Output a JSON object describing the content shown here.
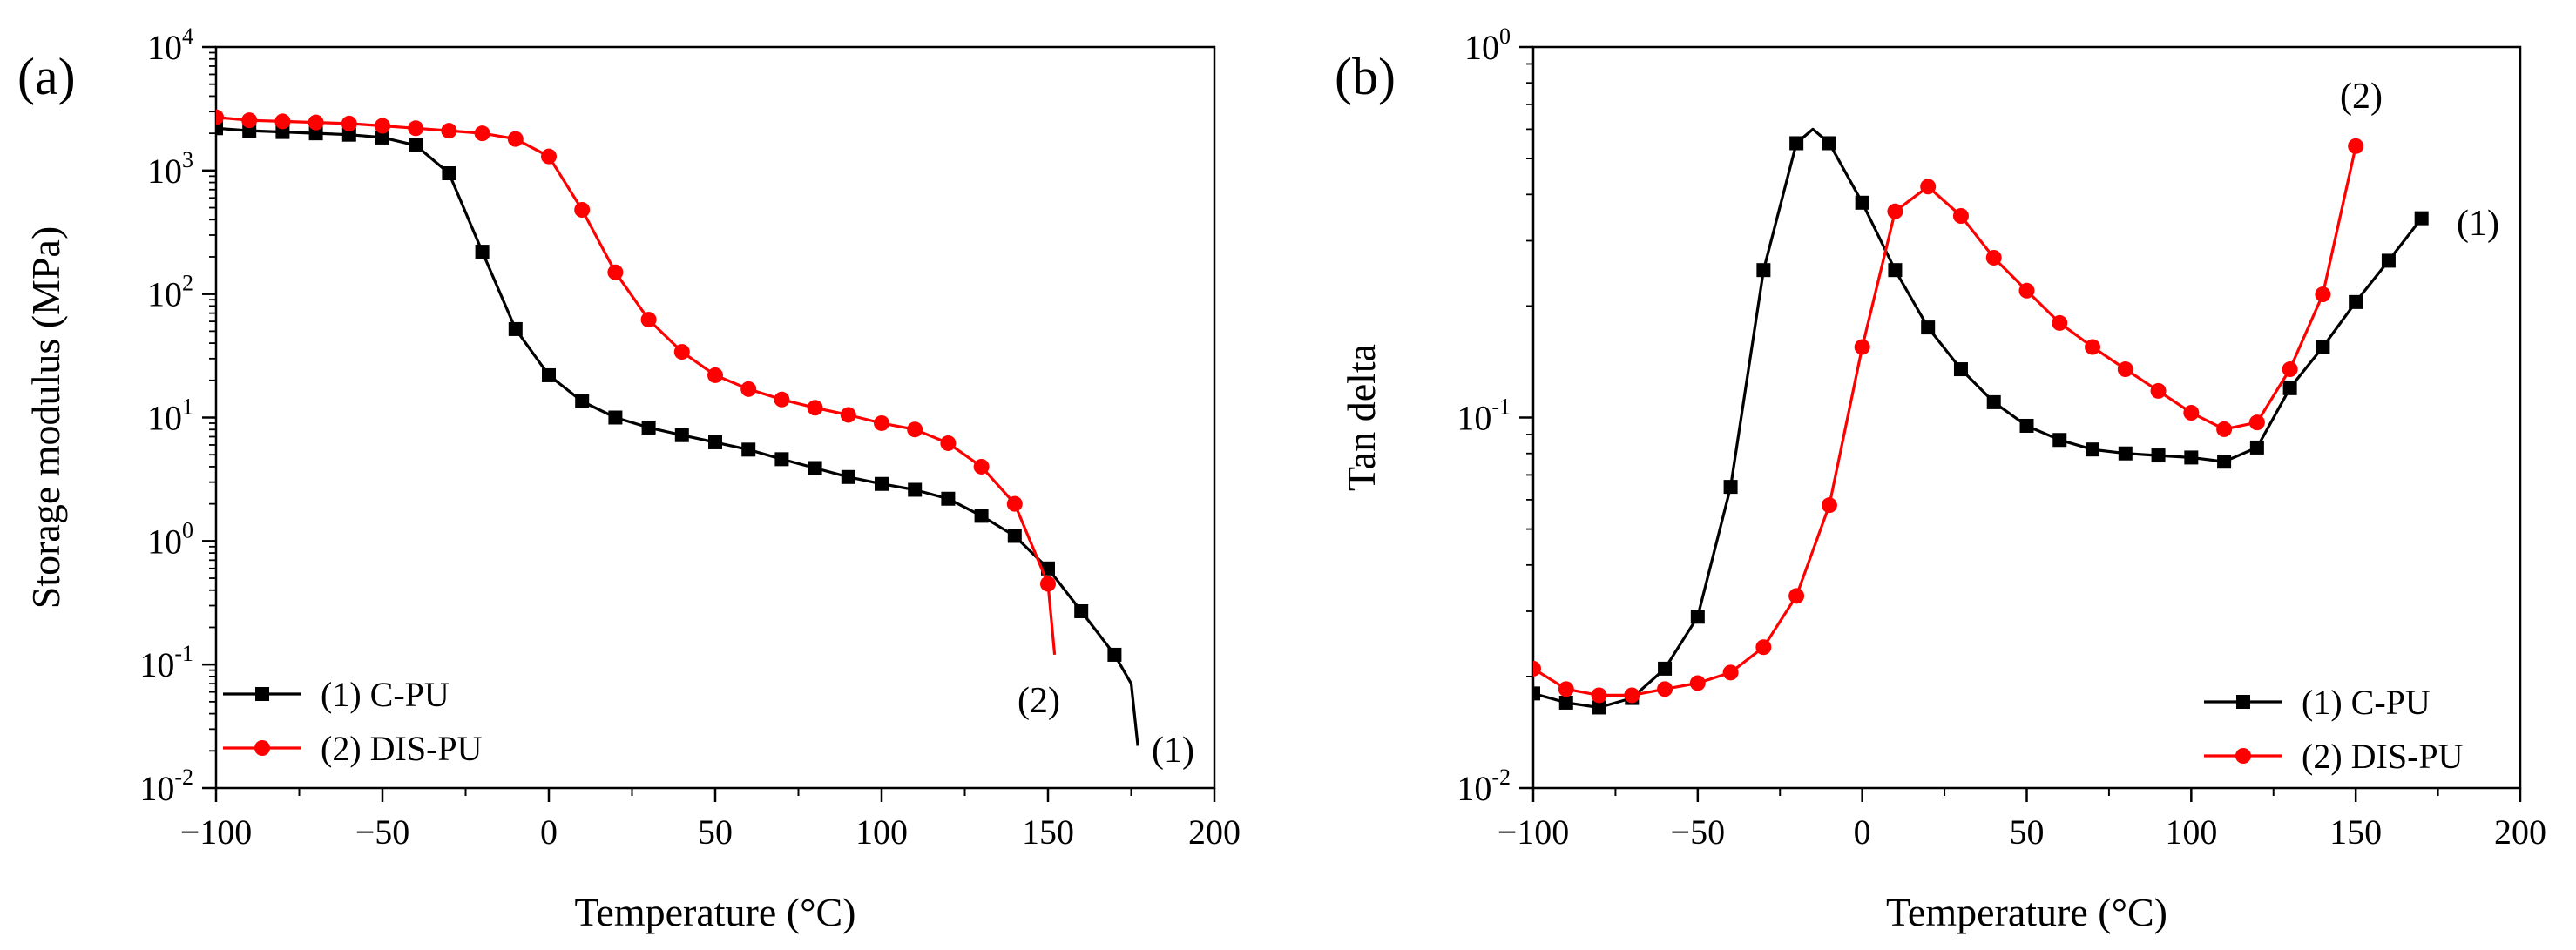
{
  "chart_data": [
    {
      "panel": "(a)",
      "type": "line",
      "xlabel": "Temperature (°C)",
      "ylabel": "Storage modulus (MPa)",
      "xlim": [
        -100,
        200
      ],
      "ylim": [
        0.01,
        10000
      ],
      "yscale": "log",
      "xticks": [
        -100,
        -50,
        0,
        50,
        100,
        150,
        200
      ],
      "xtick_labels": [
        "−100",
        "−50",
        "0",
        "50",
        "100",
        "150",
        "200"
      ],
      "yticks": [
        {
          "value": 0.01,
          "base": "10",
          "exp": "-2"
        },
        {
          "value": 0.1,
          "base": "10",
          "exp": "-1"
        },
        {
          "value": 1,
          "base": "10",
          "exp": "0"
        },
        {
          "value": 10,
          "base": "10",
          "exp": "1"
        },
        {
          "value": 100,
          "base": "10",
          "exp": "2"
        },
        {
          "value": 1000,
          "base": "10",
          "exp": "3"
        },
        {
          "value": 10000,
          "base": "10",
          "exp": "4"
        }
      ],
      "grid": false,
      "legend_position": "bottom-left",
      "series": [
        {
          "name": "(1) C-PU",
          "color": "#000000",
          "marker": "square",
          "annotation": "(1)",
          "x": [
            -100,
            -90,
            -80,
            -70,
            -60,
            -50,
            -40,
            -30,
            -20,
            -10,
            0,
            10,
            20,
            30,
            40,
            50,
            60,
            70,
            80,
            90,
            100,
            110,
            120,
            130,
            140,
            150,
            160,
            170,
            175,
            177
          ],
          "y": [
            2200,
            2100,
            2050,
            2000,
            1950,
            1850,
            1600,
            950,
            220,
            52,
            22,
            13.5,
            10,
            8.3,
            7.2,
            6.3,
            5.5,
            4.6,
            3.9,
            3.3,
            2.9,
            2.6,
            2.2,
            1.6,
            1.1,
            0.6,
            0.27,
            0.12,
            0.07,
            0.022
          ],
          "marker_points": [
            [
              -100,
              2200
            ],
            [
              -90,
              2100
            ],
            [
              -80,
              2050
            ],
            [
              -70,
              2000
            ],
            [
              -60,
              1950
            ],
            [
              -50,
              1850
            ],
            [
              -40,
              1600
            ],
            [
              -30,
              950
            ],
            [
              -20,
              220
            ],
            [
              -10,
              52
            ],
            [
              0,
              22
            ],
            [
              10,
              13.5
            ],
            [
              20,
              10
            ],
            [
              30,
              8.3
            ],
            [
              40,
              7.2
            ],
            [
              50,
              6.3
            ],
            [
              60,
              5.5
            ],
            [
              70,
              4.6
            ],
            [
              80,
              3.9
            ],
            [
              90,
              3.3
            ],
            [
              100,
              2.9
            ],
            [
              110,
              2.6
            ],
            [
              120,
              2.2
            ],
            [
              130,
              1.6
            ],
            [
              140,
              1.1
            ],
            [
              150,
              0.6
            ],
            [
              160,
              0.27
            ],
            [
              170,
              0.12
            ]
          ]
        },
        {
          "name": "(2) DIS-PU",
          "color": "#ff0000",
          "marker": "circle",
          "annotation": "(2)",
          "x": [
            -100,
            -90,
            -80,
            -70,
            -60,
            -50,
            -40,
            -30,
            -20,
            -10,
            0,
            10,
            20,
            30,
            40,
            50,
            60,
            70,
            80,
            90,
            100,
            110,
            120,
            130,
            140,
            150,
            152
          ],
          "y": [
            2700,
            2550,
            2500,
            2450,
            2400,
            2300,
            2200,
            2100,
            2000,
            1800,
            1300,
            480,
            150,
            62,
            34,
            22,
            17,
            14,
            12,
            10.5,
            9,
            8,
            6.2,
            4,
            2,
            0.45,
            0.12
          ],
          "marker_points": [
            [
              -100,
              2700
            ],
            [
              -90,
              2550
            ],
            [
              -80,
              2500
            ],
            [
              -70,
              2450
            ],
            [
              -60,
              2400
            ],
            [
              -50,
              2300
            ],
            [
              -40,
              2200
            ],
            [
              -30,
              2100
            ],
            [
              -20,
              2000
            ],
            [
              -10,
              1800
            ],
            [
              0,
              1300
            ],
            [
              10,
              480
            ],
            [
              20,
              150
            ],
            [
              30,
              62
            ],
            [
              40,
              34
            ],
            [
              50,
              22
            ],
            [
              60,
              17
            ],
            [
              70,
              14
            ],
            [
              80,
              12
            ],
            [
              90,
              10.5
            ],
            [
              100,
              9
            ],
            [
              110,
              8
            ],
            [
              120,
              6.2
            ],
            [
              130,
              4
            ],
            [
              140,
              2
            ],
            [
              150,
              0.45
            ]
          ]
        }
      ]
    },
    {
      "panel": "(b)",
      "type": "line",
      "xlabel": "Temperature (°C)",
      "ylabel": "Tan delta",
      "xlim": [
        -100,
        200
      ],
      "ylim": [
        0.01,
        1
      ],
      "yscale": "log",
      "xticks": [
        -100,
        -50,
        0,
        50,
        100,
        150,
        200
      ],
      "xtick_labels": [
        "−100",
        "−50",
        "0",
        "50",
        "100",
        "150",
        "200"
      ],
      "yticks": [
        {
          "value": 0.01,
          "base": "10",
          "exp": "-2"
        },
        {
          "value": 0.1,
          "base": "10",
          "exp": "-1"
        },
        {
          "value": 1,
          "base": "10",
          "exp": "0"
        }
      ],
      "grid": false,
      "legend_position": "bottom-right",
      "series": [
        {
          "name": "(1) C-PU",
          "color": "#000000",
          "marker": "square",
          "annotation": "(1)",
          "x": [
            -100,
            -90,
            -80,
            -70,
            -60,
            -50,
            -40,
            -30,
            -20,
            -15,
            -10,
            0,
            10,
            20,
            30,
            40,
            50,
            60,
            70,
            80,
            90,
            100,
            110,
            120,
            130,
            140,
            150,
            160,
            170
          ],
          "y": [
            0.018,
            0.017,
            0.0165,
            0.0175,
            0.021,
            0.029,
            0.065,
            0.25,
            0.55,
            0.6,
            0.55,
            0.38,
            0.25,
            0.175,
            0.135,
            0.11,
            0.095,
            0.087,
            0.082,
            0.08,
            0.079,
            0.078,
            0.076,
            0.083,
            0.12,
            0.155,
            0.205,
            0.265,
            0.345
          ],
          "marker_points": [
            [
              -100,
              0.018
            ],
            [
              -90,
              0.017
            ],
            [
              -80,
              0.0165
            ],
            [
              -70,
              0.0175
            ],
            [
              -60,
              0.021
            ],
            [
              -50,
              0.029
            ],
            [
              -40,
              0.065
            ],
            [
              -30,
              0.25
            ],
            [
              -20,
              0.55
            ],
            [
              -10,
              0.55
            ],
            [
              0,
              0.38
            ],
            [
              10,
              0.25
            ],
            [
              20,
              0.175
            ],
            [
              30,
              0.135
            ],
            [
              40,
              0.11
            ],
            [
              50,
              0.095
            ],
            [
              60,
              0.087
            ],
            [
              70,
              0.082
            ],
            [
              80,
              0.08
            ],
            [
              90,
              0.079
            ],
            [
              100,
              0.078
            ],
            [
              110,
              0.076
            ],
            [
              120,
              0.083
            ],
            [
              130,
              0.12
            ],
            [
              140,
              0.155
            ],
            [
              150,
              0.205
            ],
            [
              160,
              0.265
            ],
            [
              170,
              0.345
            ]
          ]
        },
        {
          "name": "(2) DIS-PU",
          "color": "#ff0000",
          "marker": "circle",
          "annotation": "(2)",
          "x": [
            -100,
            -90,
            -80,
            -70,
            -60,
            -50,
            -40,
            -30,
            -20,
            -10,
            0,
            10,
            20,
            30,
            40,
            50,
            60,
            70,
            80,
            90,
            100,
            110,
            120,
            130,
            140,
            150
          ],
          "y": [
            0.021,
            0.0185,
            0.0178,
            0.0178,
            0.0185,
            0.0192,
            0.0205,
            0.024,
            0.033,
            0.058,
            0.155,
            0.36,
            0.42,
            0.35,
            0.27,
            0.22,
            0.18,
            0.155,
            0.135,
            0.118,
            0.103,
            0.093,
            0.097,
            0.135,
            0.215,
            0.54
          ],
          "marker_points": [
            [
              -100,
              0.021
            ],
            [
              -90,
              0.0185
            ],
            [
              -80,
              0.0178
            ],
            [
              -70,
              0.0178
            ],
            [
              -60,
              0.0185
            ],
            [
              -50,
              0.0192
            ],
            [
              -40,
              0.0205
            ],
            [
              -30,
              0.024
            ],
            [
              -20,
              0.033
            ],
            [
              -10,
              0.058
            ],
            [
              0,
              0.155
            ],
            [
              10,
              0.36
            ],
            [
              20,
              0.42
            ],
            [
              30,
              0.35
            ],
            [
              40,
              0.27
            ],
            [
              50,
              0.22
            ],
            [
              60,
              0.18
            ],
            [
              70,
              0.155
            ],
            [
              80,
              0.135
            ],
            [
              90,
              0.118
            ],
            [
              100,
              0.103
            ],
            [
              110,
              0.093
            ],
            [
              120,
              0.097
            ],
            [
              130,
              0.135
            ],
            [
              140,
              0.215
            ],
            [
              150,
              0.54
            ]
          ]
        }
      ]
    }
  ]
}
